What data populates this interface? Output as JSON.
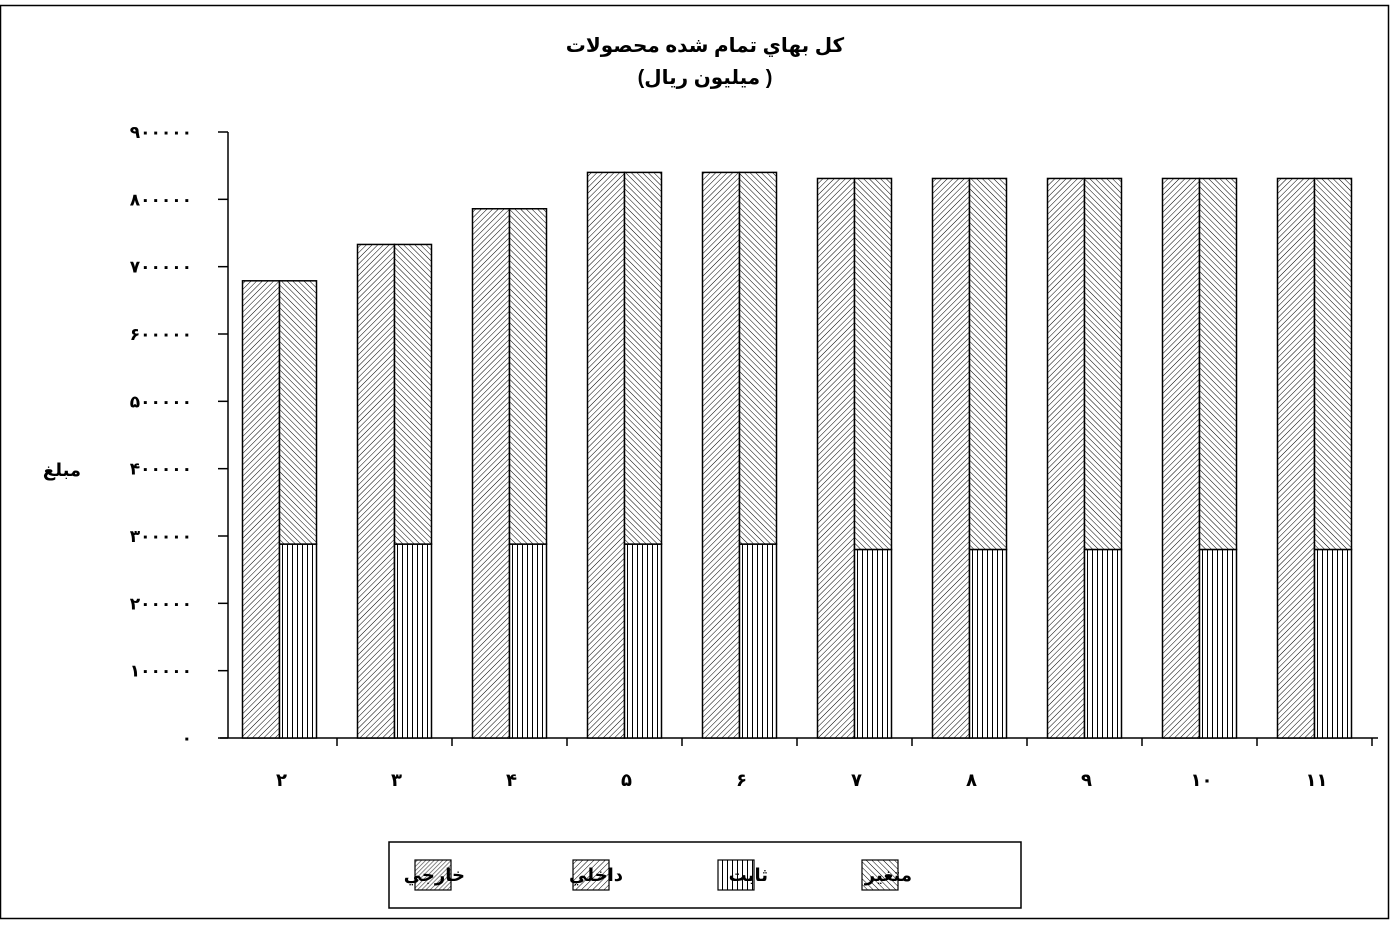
{
  "chart_data": {
    "type": "bar",
    "title": "کل بهاي تمام شده محصولات",
    "subtitle": "( ميليون ريال)",
    "xlabel": "",
    "ylabel": "مبلغ",
    "ylim": [
      0,
      900000
    ],
    "yticks": [
      {
        "value": 0,
        "label": "۰"
      },
      {
        "value": 100000,
        "label": "۱۰۰۰۰۰"
      },
      {
        "value": 200000,
        "label": "۲۰۰۰۰۰"
      },
      {
        "value": 300000,
        "label": "۳۰۰۰۰۰"
      },
      {
        "value": 400000,
        "label": "۴۰۰۰۰۰"
      },
      {
        "value": 500000,
        "label": "۵۰۰۰۰۰"
      },
      {
        "value": 600000,
        "label": "۶۰۰۰۰۰"
      },
      {
        "value": 700000,
        "label": "۷۰۰۰۰۰"
      },
      {
        "value": 800000,
        "label": "۸۰۰۰۰۰"
      },
      {
        "value": 900000,
        "label": "۹۰۰۰۰۰"
      }
    ],
    "categories": [
      "۲",
      "۳",
      "۴",
      "۵",
      "۶",
      "۷",
      "۸",
      "۹",
      "۱۰",
      "۱۱"
    ],
    "stacks": [
      {
        "stack": "left",
        "series": [
          {
            "name": "داخلي",
            "values": [
              679000,
              733000,
              786000,
              840000,
              840000,
              831000,
              831000,
              831000,
              831000,
              831000
            ]
          },
          {
            "name": "خارجي",
            "values": [
              0,
              0,
              0,
              0,
              0,
              0,
              0,
              0,
              0,
              0
            ]
          }
        ]
      },
      {
        "stack": "right",
        "series": [
          {
            "name": "ثابت",
            "values": [
              288000,
              288000,
              288000,
              288000,
              288000,
              280000,
              280000,
              280000,
              280000,
              280000
            ]
          },
          {
            "name": "متغير",
            "values": [
              391000,
              445000,
              498000,
              552000,
              552000,
              551000,
              551000,
              551000,
              551000,
              551000
            ]
          }
        ]
      }
    ],
    "legend": {
      "position": "bottom",
      "items": [
        {
          "label": "متغير",
          "pattern": "hatch-dense"
        },
        {
          "label": "ثابت",
          "pattern": "vertical"
        },
        {
          "label": "داخلي",
          "pattern": "hatch"
        },
        {
          "label": "خارجي",
          "pattern": "hatch-fine"
        }
      ]
    },
    "grid": false
  }
}
